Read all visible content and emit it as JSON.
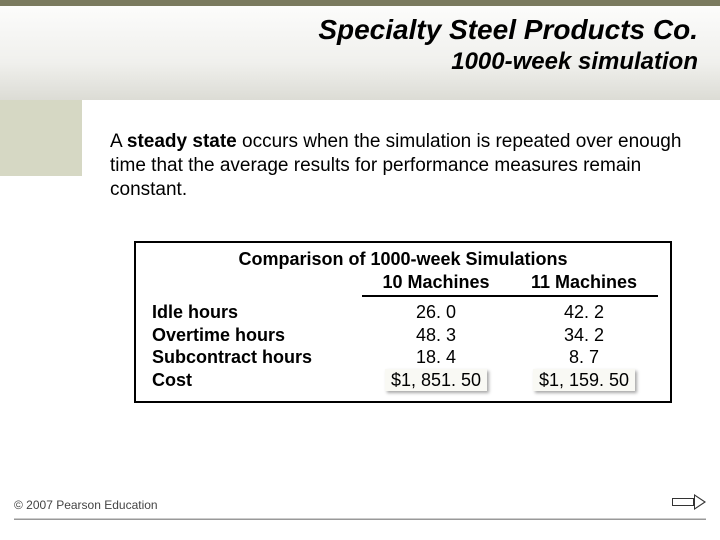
{
  "title": {
    "main": "Specialty Steel Products Co.",
    "sub": "1000-week simulation"
  },
  "body": {
    "pre": "A ",
    "bold": "steady state",
    "post": " occurs when the simulation is repeated over enough time that the average results for performance measures remain constant."
  },
  "table": {
    "caption": "Comparison of 1000-week Simulations",
    "col1": "10 Machines",
    "col2": "11 Machines",
    "rows": [
      "Idle hours",
      "Overtime hours",
      "Subcontract hours",
      "Cost"
    ],
    "vals1": [
      "26. 0",
      "48. 3",
      "18. 4",
      "$1, 851. 50"
    ],
    "vals2": [
      "42. 2",
      "34. 2",
      "8. 7",
      "$1, 159. 50"
    ]
  },
  "footer": "© 2007 Pearson Education",
  "colors": {
    "accent": "#d6d8c4",
    "topbar": "#7a7a5e"
  }
}
